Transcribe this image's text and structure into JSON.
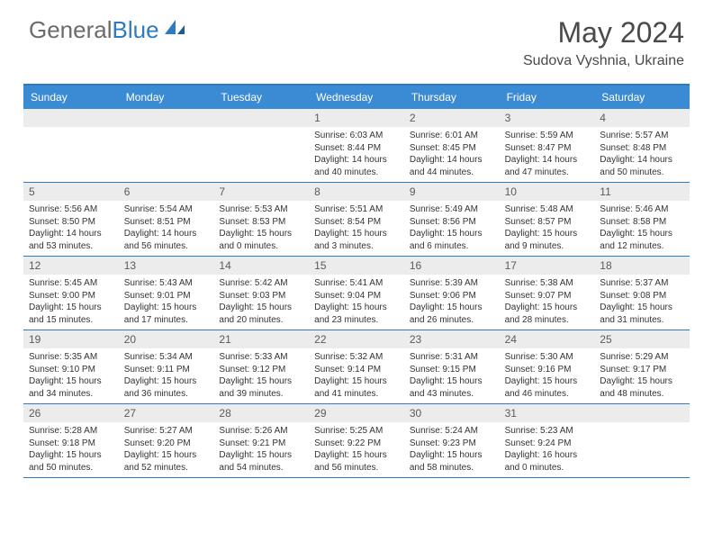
{
  "logo": {
    "text_gray": "General",
    "text_blue": "Blue"
  },
  "title": "May 2024",
  "location": "Sudova Vyshnia, Ukraine",
  "colors": {
    "header_bg": "#3b8bd4",
    "border": "#2e7bc0",
    "numrow_bg": "#ececec",
    "text_gray": "#6b6b6b",
    "text_blue": "#2e7bc0"
  },
  "day_names": [
    "Sunday",
    "Monday",
    "Tuesday",
    "Wednesday",
    "Thursday",
    "Friday",
    "Saturday"
  ],
  "weeks": [
    [
      {
        "num": "",
        "sunrise": "",
        "sunset": "",
        "daylight": ""
      },
      {
        "num": "",
        "sunrise": "",
        "sunset": "",
        "daylight": ""
      },
      {
        "num": "",
        "sunrise": "",
        "sunset": "",
        "daylight": ""
      },
      {
        "num": "1",
        "sunrise": "6:03 AM",
        "sunset": "8:44 PM",
        "daylight": "14 hours and 40 minutes."
      },
      {
        "num": "2",
        "sunrise": "6:01 AM",
        "sunset": "8:45 PM",
        "daylight": "14 hours and 44 minutes."
      },
      {
        "num": "3",
        "sunrise": "5:59 AM",
        "sunset": "8:47 PM",
        "daylight": "14 hours and 47 minutes."
      },
      {
        "num": "4",
        "sunrise": "5:57 AM",
        "sunset": "8:48 PM",
        "daylight": "14 hours and 50 minutes."
      }
    ],
    [
      {
        "num": "5",
        "sunrise": "5:56 AM",
        "sunset": "8:50 PM",
        "daylight": "14 hours and 53 minutes."
      },
      {
        "num": "6",
        "sunrise": "5:54 AM",
        "sunset": "8:51 PM",
        "daylight": "14 hours and 56 minutes."
      },
      {
        "num": "7",
        "sunrise": "5:53 AM",
        "sunset": "8:53 PM",
        "daylight": "15 hours and 0 minutes."
      },
      {
        "num": "8",
        "sunrise": "5:51 AM",
        "sunset": "8:54 PM",
        "daylight": "15 hours and 3 minutes."
      },
      {
        "num": "9",
        "sunrise": "5:49 AM",
        "sunset": "8:56 PM",
        "daylight": "15 hours and 6 minutes."
      },
      {
        "num": "10",
        "sunrise": "5:48 AM",
        "sunset": "8:57 PM",
        "daylight": "15 hours and 9 minutes."
      },
      {
        "num": "11",
        "sunrise": "5:46 AM",
        "sunset": "8:58 PM",
        "daylight": "15 hours and 12 minutes."
      }
    ],
    [
      {
        "num": "12",
        "sunrise": "5:45 AM",
        "sunset": "9:00 PM",
        "daylight": "15 hours and 15 minutes."
      },
      {
        "num": "13",
        "sunrise": "5:43 AM",
        "sunset": "9:01 PM",
        "daylight": "15 hours and 17 minutes."
      },
      {
        "num": "14",
        "sunrise": "5:42 AM",
        "sunset": "9:03 PM",
        "daylight": "15 hours and 20 minutes."
      },
      {
        "num": "15",
        "sunrise": "5:41 AM",
        "sunset": "9:04 PM",
        "daylight": "15 hours and 23 minutes."
      },
      {
        "num": "16",
        "sunrise": "5:39 AM",
        "sunset": "9:06 PM",
        "daylight": "15 hours and 26 minutes."
      },
      {
        "num": "17",
        "sunrise": "5:38 AM",
        "sunset": "9:07 PM",
        "daylight": "15 hours and 28 minutes."
      },
      {
        "num": "18",
        "sunrise": "5:37 AM",
        "sunset": "9:08 PM",
        "daylight": "15 hours and 31 minutes."
      }
    ],
    [
      {
        "num": "19",
        "sunrise": "5:35 AM",
        "sunset": "9:10 PM",
        "daylight": "15 hours and 34 minutes."
      },
      {
        "num": "20",
        "sunrise": "5:34 AM",
        "sunset": "9:11 PM",
        "daylight": "15 hours and 36 minutes."
      },
      {
        "num": "21",
        "sunrise": "5:33 AM",
        "sunset": "9:12 PM",
        "daylight": "15 hours and 39 minutes."
      },
      {
        "num": "22",
        "sunrise": "5:32 AM",
        "sunset": "9:14 PM",
        "daylight": "15 hours and 41 minutes."
      },
      {
        "num": "23",
        "sunrise": "5:31 AM",
        "sunset": "9:15 PM",
        "daylight": "15 hours and 43 minutes."
      },
      {
        "num": "24",
        "sunrise": "5:30 AM",
        "sunset": "9:16 PM",
        "daylight": "15 hours and 46 minutes."
      },
      {
        "num": "25",
        "sunrise": "5:29 AM",
        "sunset": "9:17 PM",
        "daylight": "15 hours and 48 minutes."
      }
    ],
    [
      {
        "num": "26",
        "sunrise": "5:28 AM",
        "sunset": "9:18 PM",
        "daylight": "15 hours and 50 minutes."
      },
      {
        "num": "27",
        "sunrise": "5:27 AM",
        "sunset": "9:20 PM",
        "daylight": "15 hours and 52 minutes."
      },
      {
        "num": "28",
        "sunrise": "5:26 AM",
        "sunset": "9:21 PM",
        "daylight": "15 hours and 54 minutes."
      },
      {
        "num": "29",
        "sunrise": "5:25 AM",
        "sunset": "9:22 PM",
        "daylight": "15 hours and 56 minutes."
      },
      {
        "num": "30",
        "sunrise": "5:24 AM",
        "sunset": "9:23 PM",
        "daylight": "15 hours and 58 minutes."
      },
      {
        "num": "31",
        "sunrise": "5:23 AM",
        "sunset": "9:24 PM",
        "daylight": "16 hours and 0 minutes."
      },
      {
        "num": "",
        "sunrise": "",
        "sunset": "",
        "daylight": ""
      }
    ]
  ]
}
